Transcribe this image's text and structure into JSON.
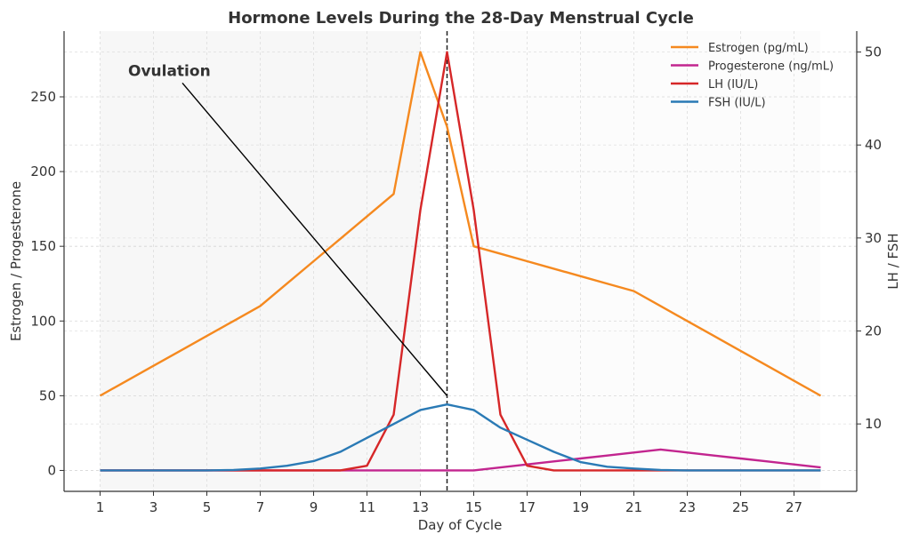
{
  "chart_data": {
    "type": "line",
    "title": "Hormone Levels During the 28-Day Menstrual Cycle",
    "xlabel": "Day of Cycle",
    "ylabel_left": "Estrogen / Progesterone",
    "ylabel_right": "LH / FSH",
    "x": [
      1,
      2,
      3,
      4,
      5,
      6,
      7,
      8,
      9,
      10,
      11,
      12,
      13,
      14,
      15,
      16,
      17,
      18,
      19,
      20,
      21,
      22,
      23,
      24,
      25,
      26,
      27,
      28
    ],
    "xticks": [
      1,
      3,
      5,
      7,
      9,
      11,
      13,
      15,
      17,
      19,
      21,
      23,
      25,
      27
    ],
    "xlim": [
      -0.35,
      29.35
    ],
    "ylim_left": [
      -14,
      294
    ],
    "yticks_left": [
      0,
      50,
      100,
      150,
      200,
      250
    ],
    "ylim_right": [
      2.75,
      52.25
    ],
    "yticks_right": [
      10,
      20,
      30,
      40,
      50
    ],
    "grid": true,
    "legend_position": "top-right",
    "series": [
      {
        "name": "Estrogen (pg/mL)",
        "axis": "left",
        "color": "#f5891f",
        "values": [
          50,
          60,
          70,
          80,
          90,
          100,
          110,
          125,
          140,
          155,
          170,
          185,
          280,
          230,
          150,
          145,
          140,
          135,
          130,
          125,
          120,
          110,
          100,
          90,
          80,
          70,
          60,
          50
        ]
      },
      {
        "name": "Progesterone (ng/mL)",
        "axis": "left",
        "color": "#c2258f",
        "values": [
          0,
          0,
          0,
          0,
          0,
          0,
          0,
          0,
          0,
          0,
          0,
          0,
          0,
          0,
          0,
          2,
          4,
          6,
          8,
          10,
          12,
          14,
          12,
          10,
          8,
          6,
          4,
          2
        ]
      },
      {
        "name": "LH (IU/L)",
        "axis": "right",
        "color": "#d62728",
        "values": [
          5,
          5,
          5,
          5,
          5,
          5,
          5,
          5,
          5,
          5,
          5.5,
          11,
          33,
          50,
          33,
          11,
          5.5,
          5,
          5,
          5,
          5,
          5,
          5,
          5,
          5,
          5,
          5,
          5
        ]
      },
      {
        "name": "FSH (IU/L)",
        "axis": "right",
        "color": "#2a7ab5",
        "values": [
          5,
          5,
          5,
          5,
          5,
          5.05,
          5.2,
          5.5,
          6,
          7,
          8.5,
          10,
          11.5,
          12.1,
          11.5,
          9.6,
          8.3,
          7,
          5.9,
          5.4,
          5.2,
          5.05,
          5,
          5,
          5,
          5,
          5,
          5
        ]
      }
    ],
    "shaded_spans": [
      {
        "x": [
          1,
          13
        ],
        "color": "#f7f7f7"
      },
      {
        "x": [
          15,
          28
        ],
        "color": "#fcfcfc"
      }
    ],
    "vline": {
      "x": 14,
      "style": "dashed",
      "color": "#222222"
    },
    "annotation": {
      "text": "Ovulation",
      "text_at": [
        2.05,
        264
      ],
      "point_at": [
        14,
        50
      ]
    }
  }
}
